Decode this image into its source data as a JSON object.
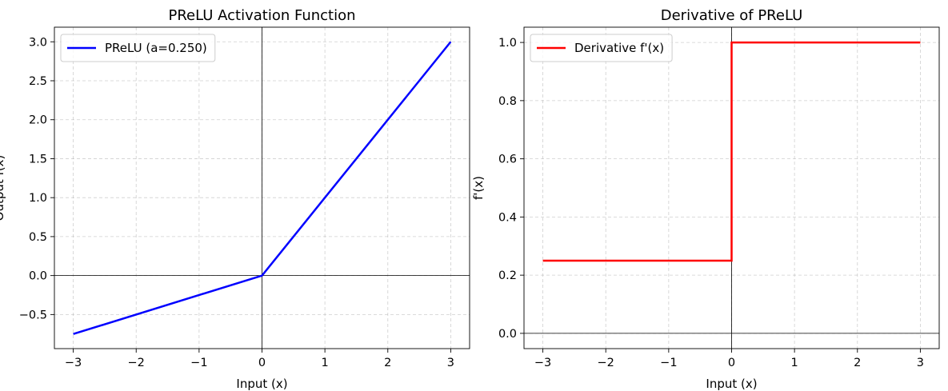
{
  "chart_data": [
    {
      "type": "line",
      "title": "PReLU Activation Function",
      "xlabel": "Input (x)",
      "ylabel": "Output f(x)",
      "xlim": [
        -3.3,
        3.3
      ],
      "ylim": [
        -0.9375,
        3.1875
      ],
      "xticks": [
        -3,
        -2,
        -1,
        0,
        1,
        2,
        3
      ],
      "xticklabels": [
        "−3",
        "−2",
        "−1",
        "0",
        "1",
        "2",
        "3"
      ],
      "yticks": [
        -0.5,
        0.0,
        0.5,
        1.0,
        1.5,
        2.0,
        2.5,
        3.0
      ],
      "yticklabels": [
        "−0.5",
        "0.0",
        "0.5",
        "1.0",
        "1.5",
        "2.0",
        "2.5",
        "3.0"
      ],
      "grid": true,
      "legend_position": "upper-left",
      "series": [
        {
          "name": "PReLU (a=0.250)",
          "color": "#0000ff",
          "x": [
            -3,
            0,
            3
          ],
          "y": [
            -0.75,
            0,
            3
          ]
        }
      ]
    },
    {
      "type": "line",
      "title": "Derivative of PReLU",
      "xlabel": "Input (x)",
      "ylabel": "f'(x)",
      "xlim": [
        -3.3,
        3.3
      ],
      "ylim": [
        -0.0525,
        1.0525
      ],
      "xticks": [
        -3,
        -2,
        -1,
        0,
        1,
        2,
        3
      ],
      "xticklabels": [
        "−3",
        "−2",
        "−1",
        "0",
        "1",
        "2",
        "3"
      ],
      "yticks": [
        0.0,
        0.2,
        0.4,
        0.6,
        0.8,
        1.0
      ],
      "yticklabels": [
        "0.0",
        "0.2",
        "0.4",
        "0.6",
        "0.8",
        "1.0"
      ],
      "grid": true,
      "legend_position": "upper-left",
      "series": [
        {
          "name": "Derivative f'(x)",
          "color": "#ff0000",
          "x": [
            -3,
            0,
            0,
            3
          ],
          "y": [
            0.25,
            0.25,
            1.0,
            1.0
          ]
        }
      ]
    }
  ]
}
